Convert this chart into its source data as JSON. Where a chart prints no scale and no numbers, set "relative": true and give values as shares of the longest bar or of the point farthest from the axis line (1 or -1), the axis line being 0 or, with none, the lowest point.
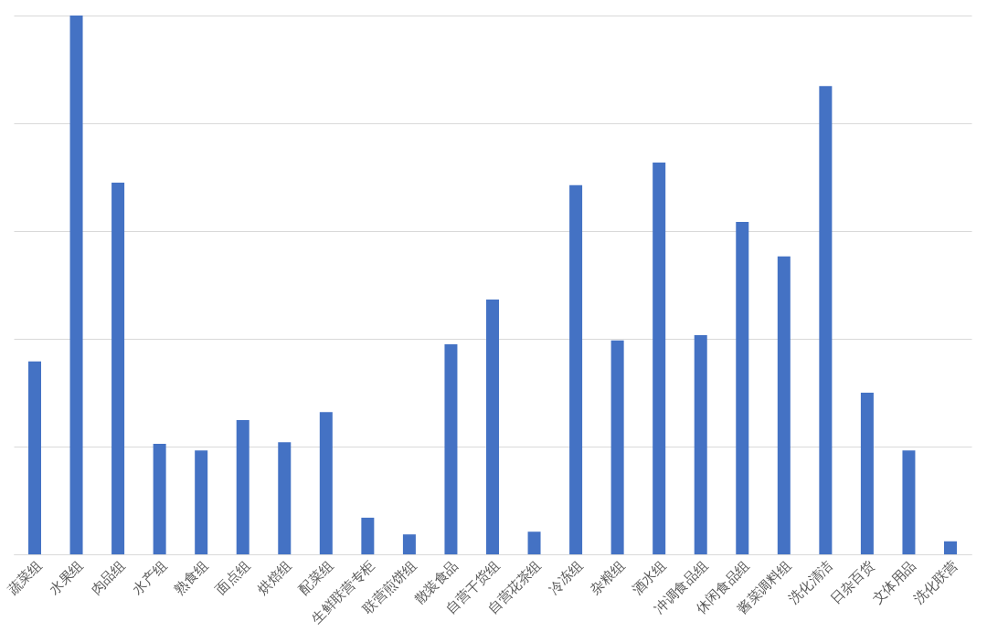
{
  "chart_data": {
    "type": "bar",
    "relative": true,
    "grid": "y",
    "color": "#4472c4",
    "categories": [
      "蔬菜组",
      "水果组",
      "肉品组",
      "水产组",
      "熟食组",
      "面点组",
      "烘焙组",
      "配菜组",
      "生鲜联营专柜",
      "联营煎饼组",
      "散装食品",
      "自营干货组",
      "自营花茶组",
      "冷冻组",
      "杂粮组",
      "酒水组",
      "冲调食品组",
      "休闲食品组",
      "酱菜调料组",
      "洗化清洁",
      "日杂百货",
      "文体用品",
      "洗化联营"
    ],
    "values": [
      0.358,
      1,
      0.69,
      0.205,
      0.193,
      0.249,
      0.208,
      0.264,
      0.068,
      0.037,
      0.39,
      0.473,
      0.042,
      0.685,
      0.397,
      0.727,
      0.407,
      0.617,
      0.553,
      0.869,
      0.3,
      0.193,
      0.024
    ]
  }
}
